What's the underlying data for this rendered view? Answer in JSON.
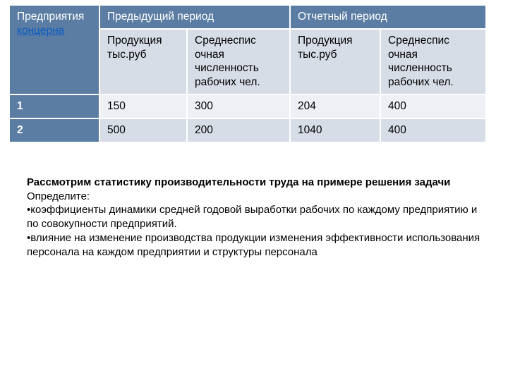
{
  "table": {
    "header": {
      "c1_line1": "Предприятия",
      "c1_line2": "концерна",
      "c2": "Предыдущий период",
      "c3": "Отчетный период"
    },
    "subheader": {
      "s1": "Продукция тыс.руб",
      "s2": "Среднеспис очная численность рабочих чел.",
      "s3": "Продукция тыс.руб",
      "s4": "Среднеспис очная численность рабочих чел."
    },
    "rows": [
      {
        "idx": "1",
        "v1": "150",
        "v2": "300",
        "v3": "204",
        "v4": "400"
      },
      {
        "idx": "2",
        "v1": "500",
        "v2": "200",
        "v3": "1040",
        "v4": "400"
      }
    ]
  },
  "text": {
    "lead": "Рассмотрим статистику производительности труда на примере решения задачи",
    "l1": "Определите:",
    "l2": "•коэффициенты динамики средней годовой выработки рабочих по каждому предприятию и по совокупности предприятий.",
    "l3": "•влияние на изменение производства продукции изменения эффективности использования персонала на каждом предприятии и структуры персонала"
  },
  "style": {
    "header_bg": "#5b7da3",
    "sub_bg": "#d7dde7",
    "row_odd_bg": "#eef0f5",
    "link_color": "#0b5bc2",
    "page_bg": "#ffffff",
    "font_family": "Verdana",
    "header_fontsize": 15.5,
    "body_fontsize": 15
  }
}
